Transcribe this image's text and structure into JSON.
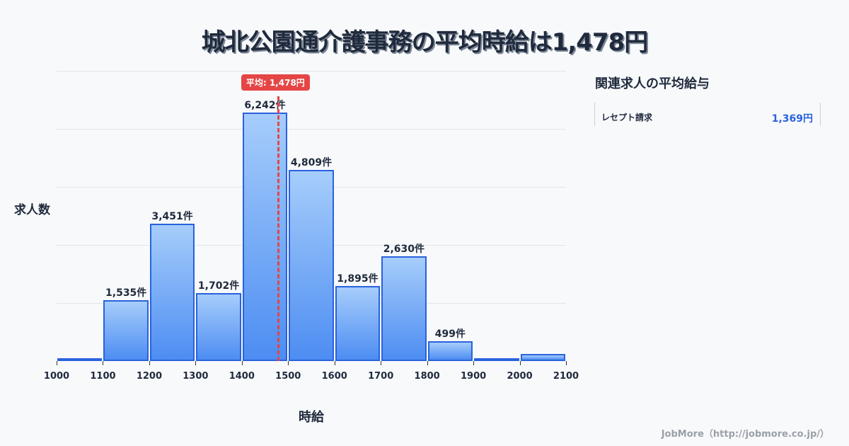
{
  "title": "城北公園通介護事務の平均時給は1,478円",
  "mean_badge": "平均: 1,478円",
  "y_axis_label": "求人数",
  "x_axis_label": "時給",
  "related": {
    "title": "関連求人の平均給与",
    "items": [
      {
        "name": "レセプト請求",
        "value": "1,369円"
      }
    ]
  },
  "footer": "JobMore（http://jobmore.co.jp/）",
  "colors": {
    "bar_top": "#a6cdfb",
    "bar_bottom": "#4d8df2",
    "bar_border": "#2a62df",
    "mean_line": "#e54545",
    "text": "#1f2a3c"
  },
  "chart_data": {
    "type": "bar",
    "title": "城北公園通介護事務の平均時給は1,478円",
    "xlabel": "時給",
    "ylabel": "求人数",
    "bin_edges": [
      1000,
      1100,
      1200,
      1300,
      1400,
      1500,
      1600,
      1700,
      1800,
      1900,
      2000,
      2100
    ],
    "categories": [
      "1000-1100",
      "1100-1200",
      "1200-1300",
      "1300-1400",
      "1400-1500",
      "1500-1600",
      "1600-1700",
      "1700-1800",
      "1800-1900",
      "1900-2000",
      "2000-2100"
    ],
    "values": [
      20,
      1535,
      3451,
      1702,
      6242,
      4809,
      1895,
      2630,
      499,
      70,
      180
    ],
    "labels": [
      "",
      "1,535件",
      "3,451件",
      "1,702件",
      "6,242件",
      "4,809件",
      "1,895件",
      "2,630件",
      "499件",
      "",
      ""
    ],
    "tick_labels": [
      "1000",
      "1100",
      "1200",
      "1300",
      "1400",
      "1500",
      "1600",
      "1700",
      "1800",
      "1900",
      "2000",
      "2100"
    ],
    "mean": 1478,
    "mean_label": "平均: 1,478円",
    "ylim": [
      0,
      7300
    ],
    "grid": true,
    "legend": "none"
  }
}
